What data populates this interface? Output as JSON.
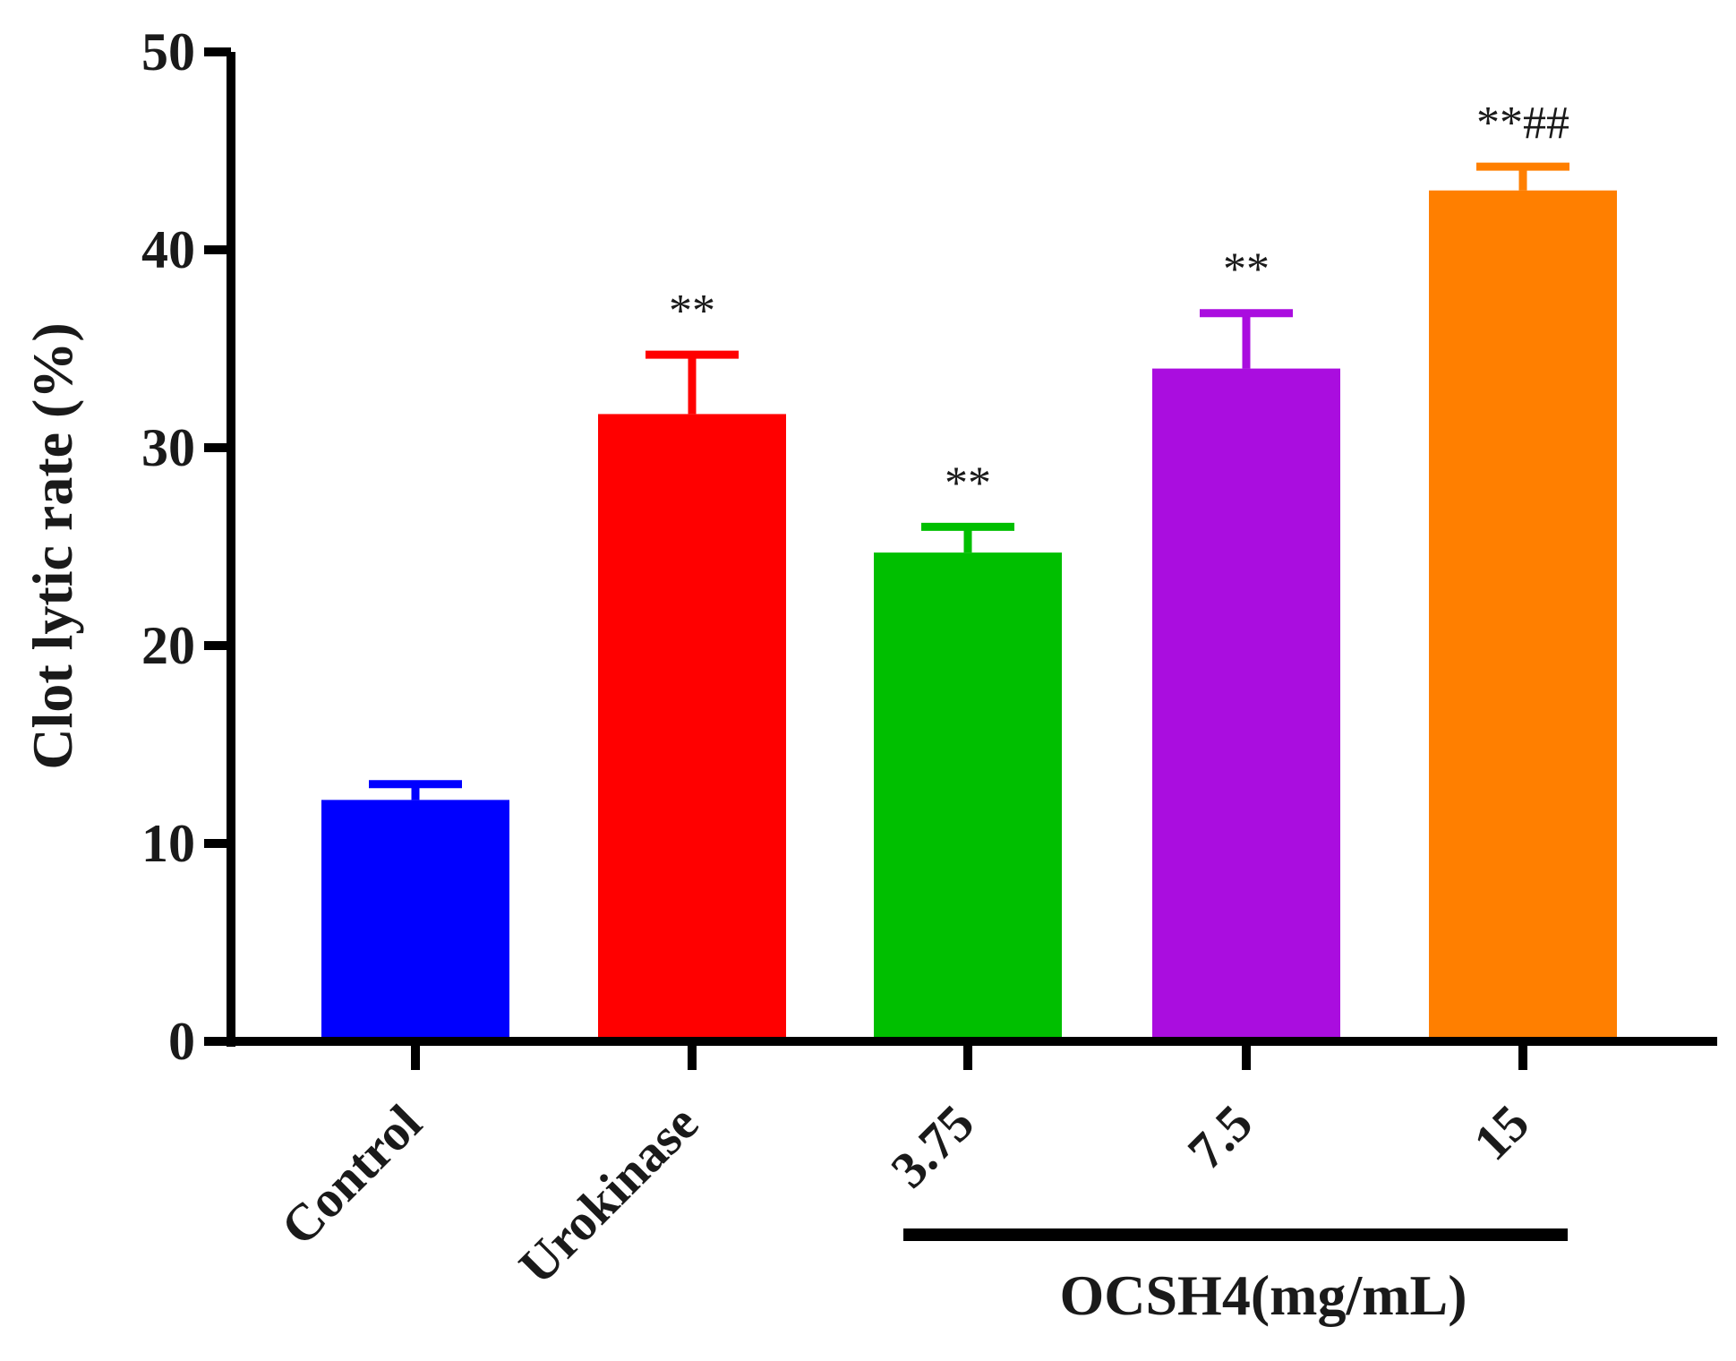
{
  "chart_data": {
    "type": "bar",
    "title": "",
    "xlabel": "",
    "ylabel": "Clot lytic rate (%)",
    "ylim": [
      0,
      50
    ],
    "yticks": [
      0,
      10,
      20,
      30,
      40,
      50
    ],
    "grid": false,
    "categories": [
      "Control",
      "Urokinase",
      "3.75",
      "7.5",
      "15"
    ],
    "values": [
      12.2,
      31.7,
      24.7,
      34.0,
      43.0
    ],
    "errors": [
      0.8,
      3.0,
      1.3,
      2.8,
      1.2
    ],
    "colors": [
      "#0000ff",
      "#ff0000",
      "#00bf00",
      "#aa0ddf",
      "#ff7f00"
    ],
    "significance": [
      "",
      "**",
      "**",
      "**",
      "**##"
    ],
    "group": {
      "label": "OCSH4(mg/mL)",
      "start_index": 2,
      "end_index": 4
    }
  }
}
